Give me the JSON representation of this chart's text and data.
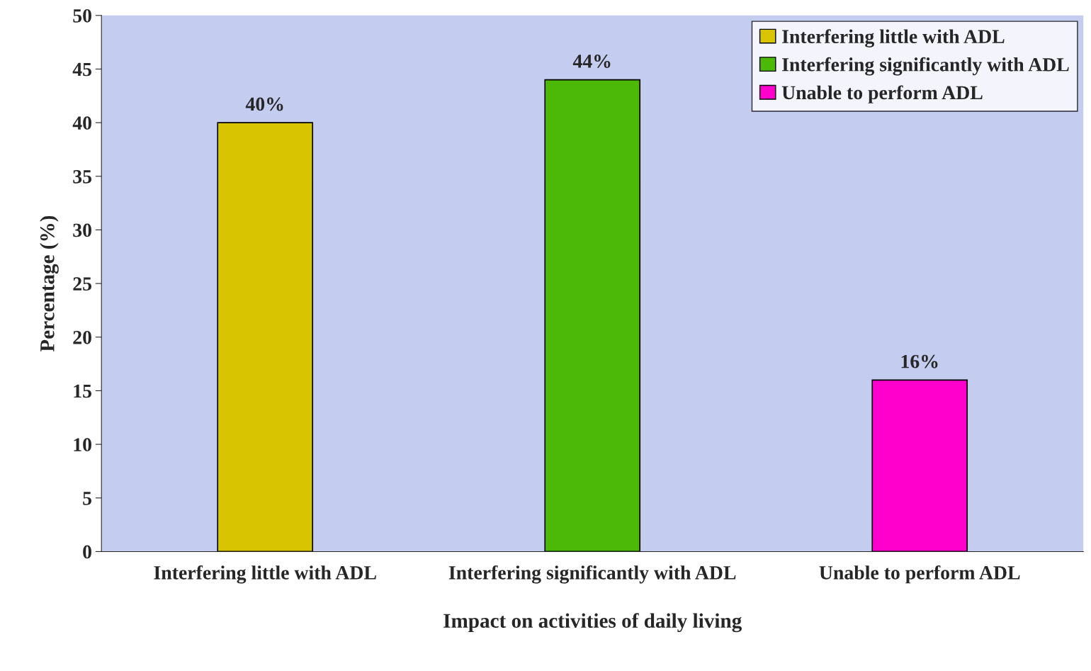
{
  "chart_data": {
    "type": "bar",
    "xlabel": "Impact on activities of daily living",
    "ylabel": "Percentage (%)",
    "categories": [
      "Interfering little with ADL",
      "Interfering significantly with ADL",
      "Unable to perform ADL"
    ],
    "series": [
      {
        "name": "Interfering little with ADL",
        "color": "#d8c400",
        "values": [
          40,
          null,
          null
        ],
        "value_labels": [
          "40%",
          null,
          null
        ]
      },
      {
        "name": "Interfering significantly with ADL",
        "color": "#4cb808",
        "values": [
          null,
          44,
          null
        ],
        "value_labels": [
          null,
          "44%",
          null
        ]
      },
      {
        "name": "Unable to perform ADL",
        "color": "#ff00cc",
        "values": [
          null,
          null,
          16
        ],
        "value_labels": [
          null,
          null,
          "16%"
        ]
      }
    ],
    "ylim": [
      0,
      50
    ],
    "yticks": [
      0,
      5,
      10,
      15,
      20,
      25,
      30,
      35,
      40,
      45,
      50
    ],
    "grid": false,
    "legend": "top right"
  }
}
